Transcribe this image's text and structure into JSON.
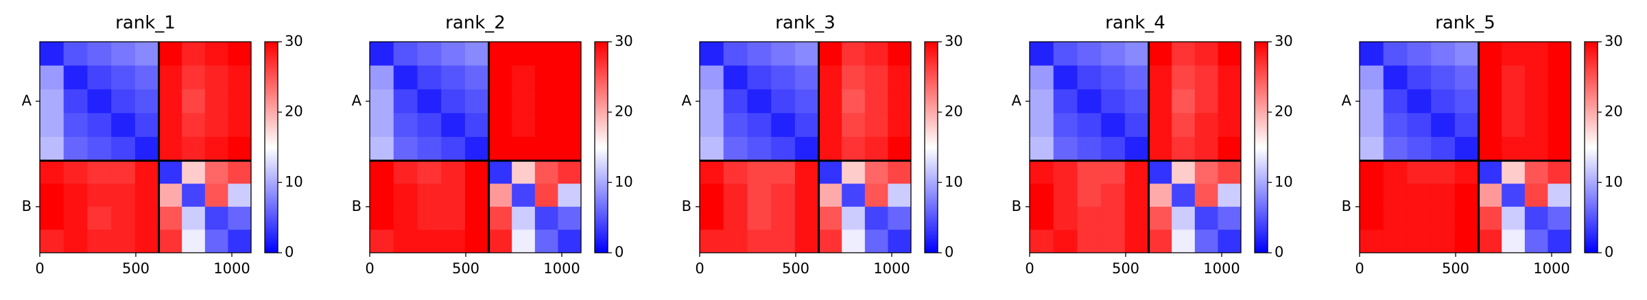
{
  "chart_data": [
    {
      "type": "heatmap",
      "title": "rank_1",
      "bins": [
        0,
        124,
        248,
        372,
        496,
        620,
        740,
        860,
        980,
        1100
      ],
      "z": [
        [
          2,
          5,
          6,
          7,
          8,
          30,
          28,
          29,
          30
        ],
        [
          9,
          2,
          4,
          5,
          6,
          29,
          27,
          28,
          29
        ],
        [
          10,
          4,
          2,
          4,
          5,
          29,
          26,
          28,
          29
        ],
        [
          10,
          5,
          4,
          2,
          4,
          29,
          27,
          28,
          29
        ],
        [
          11,
          6,
          5,
          4,
          2,
          29,
          28,
          29,
          30
        ],
        [
          29,
          28,
          27,
          27,
          29,
          3,
          18,
          24,
          26
        ],
        [
          30,
          29,
          28,
          28,
          29,
          20,
          4,
          25,
          12
        ],
        [
          30,
          29,
          27,
          28,
          29,
          25,
          12,
          4,
          6
        ],
        [
          28,
          29,
          28,
          28,
          29,
          27,
          14,
          6,
          3
        ]
      ],
      "xlim": [
        0,
        1100
      ],
      "xticks": [
        0,
        500,
        1000
      ],
      "chains": [
        {
          "label": "A",
          "start": 0,
          "end": 620
        },
        {
          "label": "B",
          "start": 620,
          "end": 1100
        }
      ],
      "clim": [
        0,
        30
      ],
      "cticks": [
        0,
        10,
        20,
        30
      ],
      "colormap": [
        "#0000ff",
        "#ffffff",
        "#ff0000"
      ]
    },
    {
      "type": "heatmap",
      "title": "rank_2",
      "bins": [
        0,
        124,
        248,
        372,
        496,
        620,
        740,
        860,
        980,
        1100
      ],
      "z": [
        [
          2,
          5,
          6,
          7,
          8,
          30,
          30,
          30,
          30
        ],
        [
          9,
          2,
          4,
          5,
          6,
          30,
          29,
          30,
          30
        ],
        [
          10,
          4,
          2,
          4,
          5,
          30,
          29,
          30,
          30
        ],
        [
          10,
          5,
          4,
          2,
          4,
          30,
          29,
          30,
          30
        ],
        [
          11,
          6,
          5,
          4,
          2,
          30,
          30,
          30,
          30
        ],
        [
          30,
          28,
          27,
          28,
          30,
          3,
          18,
          25,
          27
        ],
        [
          30,
          29,
          28,
          28,
          30,
          21,
          4,
          26,
          12
        ],
        [
          30,
          29,
          28,
          28,
          30,
          26,
          12,
          4,
          6
        ],
        [
          28,
          29,
          29,
          29,
          30,
          28,
          14,
          6,
          3
        ]
      ],
      "xlim": [
        0,
        1100
      ],
      "xticks": [
        0,
        500,
        1000
      ],
      "chains": [
        {
          "label": "A",
          "start": 0,
          "end": 620
        },
        {
          "label": "B",
          "start": 620,
          "end": 1100
        }
      ],
      "clim": [
        0,
        30
      ],
      "cticks": [
        0,
        10,
        20,
        30
      ],
      "colormap": [
        "#0000ff",
        "#ffffff",
        "#ff0000"
      ]
    },
    {
      "type": "heatmap",
      "title": "rank_3",
      "bins": [
        0,
        124,
        248,
        372,
        496,
        620,
        740,
        860,
        980,
        1100
      ],
      "z": [
        [
          2,
          5,
          6,
          7,
          8,
          30,
          27,
          28,
          30
        ],
        [
          9,
          2,
          4,
          5,
          6,
          29,
          26,
          27,
          29
        ],
        [
          10,
          4,
          2,
          4,
          5,
          29,
          25,
          27,
          29
        ],
        [
          10,
          5,
          4,
          2,
          4,
          29,
          26,
          27,
          29
        ],
        [
          11,
          6,
          5,
          4,
          2,
          29,
          27,
          28,
          30
        ],
        [
          29,
          27,
          26,
          26,
          29,
          3,
          18,
          24,
          26
        ],
        [
          30,
          28,
          26,
          27,
          29,
          20,
          4,
          25,
          12
        ],
        [
          30,
          28,
          26,
          27,
          29,
          25,
          12,
          4,
          6
        ],
        [
          28,
          28,
          27,
          27,
          29,
          27,
          14,
          6,
          3
        ]
      ],
      "xlim": [
        0,
        1100
      ],
      "xticks": [
        0,
        500,
        1000
      ],
      "chains": [
        {
          "label": "A",
          "start": 0,
          "end": 620
        },
        {
          "label": "B",
          "start": 620,
          "end": 1100
        }
      ],
      "clim": [
        0,
        30
      ],
      "cticks": [
        0,
        10,
        20,
        30
      ],
      "colormap": [
        "#0000ff",
        "#ffffff",
        "#ff0000"
      ]
    },
    {
      "type": "heatmap",
      "title": "rank_4",
      "bins": [
        0,
        124,
        248,
        372,
        496,
        620,
        740,
        860,
        980,
        1100
      ],
      "z": [
        [
          2,
          5,
          6,
          7,
          8,
          30,
          27,
          28,
          30
        ],
        [
          9,
          2,
          4,
          5,
          6,
          29,
          26,
          27,
          29
        ],
        [
          10,
          4,
          2,
          4,
          5,
          29,
          25,
          27,
          29
        ],
        [
          10,
          5,
          4,
          2,
          4,
          29,
          26,
          28,
          29
        ],
        [
          11,
          6,
          5,
          4,
          2,
          29,
          27,
          28,
          30
        ],
        [
          29,
          28,
          26,
          26,
          29,
          3,
          18,
          24,
          26
        ],
        [
          30,
          28,
          26,
          27,
          29,
          20,
          4,
          25,
          12
        ],
        [
          30,
          28,
          27,
          27,
          29,
          25,
          12,
          4,
          6
        ],
        [
          28,
          29,
          27,
          27,
          29,
          27,
          14,
          6,
          3
        ]
      ],
      "xlim": [
        0,
        1100
      ],
      "xticks": [
        0,
        500,
        1000
      ],
      "chains": [
        {
          "label": "A",
          "start": 0,
          "end": 620
        },
        {
          "label": "B",
          "start": 620,
          "end": 1100
        }
      ],
      "clim": [
        0,
        30
      ],
      "cticks": [
        0,
        10,
        20,
        30
      ],
      "colormap": [
        "#0000ff",
        "#ffffff",
        "#ff0000"
      ]
    },
    {
      "type": "heatmap",
      "title": "rank_5",
      "bins": [
        0,
        124,
        248,
        372,
        496,
        620,
        740,
        860,
        980,
        1100
      ],
      "z": [
        [
          2,
          5,
          6,
          7,
          8,
          30,
          29,
          29,
          30
        ],
        [
          9,
          2,
          4,
          5,
          6,
          30,
          28,
          29,
          30
        ],
        [
          10,
          4,
          2,
          4,
          5,
          30,
          28,
          29,
          30
        ],
        [
          10,
          5,
          4,
          2,
          4,
          30,
          28,
          29,
          30
        ],
        [
          11,
          6,
          5,
          4,
          2,
          30,
          29,
          29,
          30
        ],
        [
          30,
          29,
          28,
          28,
          29,
          3,
          18,
          25,
          27
        ],
        [
          30,
          29,
          29,
          29,
          30,
          21,
          4,
          26,
          12
        ],
        [
          30,
          29,
          29,
          29,
          30,
          26,
          12,
          4,
          6
        ],
        [
          29,
          29,
          29,
          29,
          30,
          28,
          14,
          6,
          3
        ]
      ],
      "xlim": [
        0,
        1100
      ],
      "xticks": [
        0,
        500,
        1000
      ],
      "chains": [
        {
          "label": "A",
          "start": 0,
          "end": 620
        },
        {
          "label": "B",
          "start": 620,
          "end": 1100
        }
      ],
      "clim": [
        0,
        30
      ],
      "cticks": [
        0,
        10,
        20,
        30
      ],
      "colormap": [
        "#0000ff",
        "#ffffff",
        "#ff0000"
      ]
    }
  ]
}
